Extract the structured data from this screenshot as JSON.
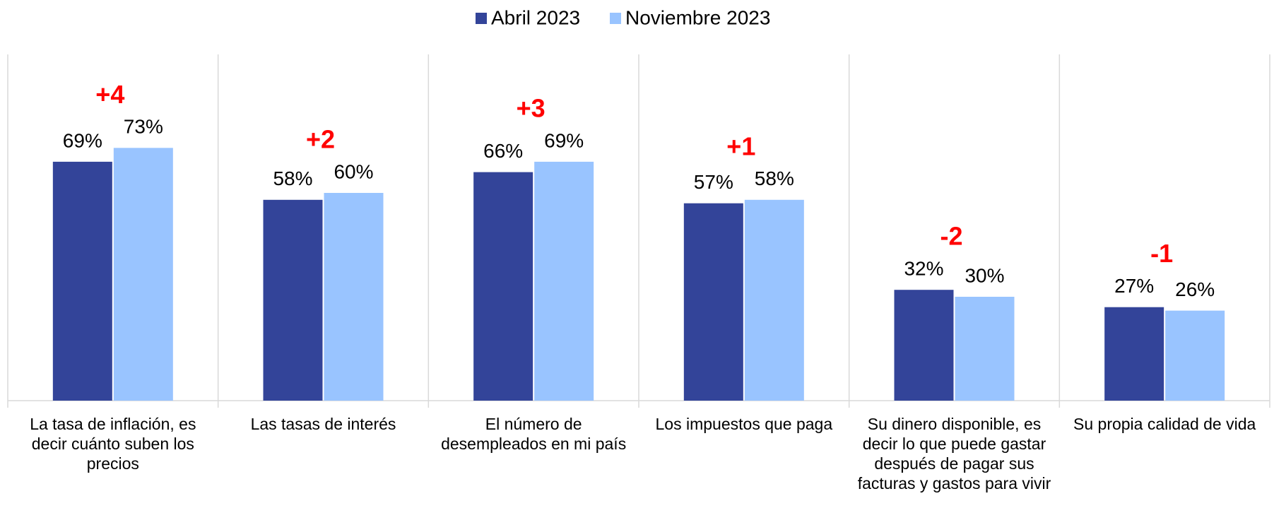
{
  "chart_data": {
    "type": "bar",
    "categories": [
      "La tasa de inflación, es decir cuánto suben los precios",
      "Las tasas de interés",
      "El número de desempleados en mi país",
      "Los impuestos que paga",
      "Su dinero disponible, es decir lo que puede gastar después de pagar sus facturas y gastos para vivir",
      "Su propia calidad de vida"
    ],
    "series": [
      {
        "name": "Abril 2023",
        "color": "#334499",
        "values": [
          69,
          58,
          66,
          57,
          32,
          27
        ],
        "value_labels": [
          "69%",
          "58%",
          "66%",
          "57%",
          "32%",
          "27%"
        ]
      },
      {
        "name": "Noviembre 2023",
        "color": "#99c4ff",
        "values": [
          73,
          60,
          69,
          58,
          30,
          26
        ],
        "value_labels": [
          "73%",
          "60%",
          "69%",
          "58%",
          "30%",
          "26%"
        ]
      }
    ],
    "annotations": [
      "+4",
      "+2",
      "+3",
      "+1",
      "-2",
      "-1"
    ],
    "annotation_color": "#ff0000",
    "ylim": [
      0,
      100
    ],
    "legend": "top"
  }
}
